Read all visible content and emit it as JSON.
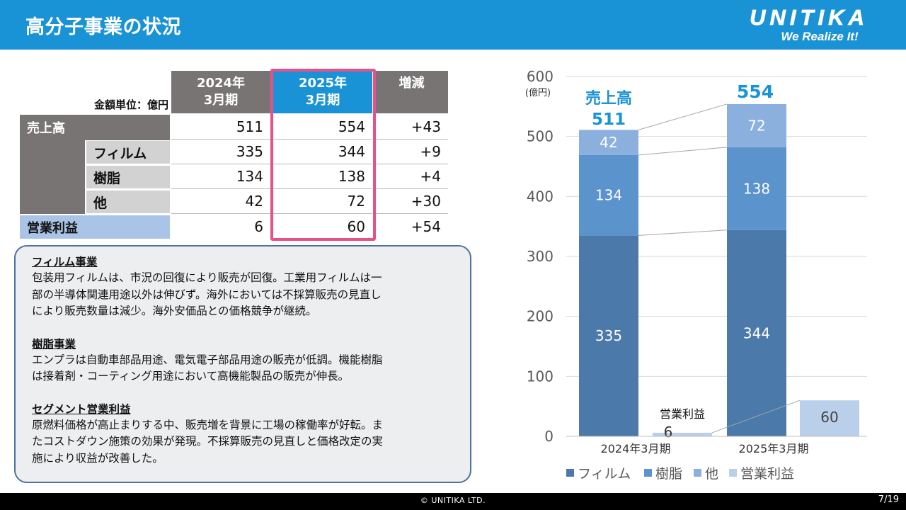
{
  "header": {
    "title": "高分子事業の状況",
    "logo_word": "UNITIKA",
    "logo_tagline": "We Realize It!"
  },
  "table": {
    "unit_label": "金額単位：億円",
    "columns": [
      {
        "line1": "2024年",
        "line2": "3月期"
      },
      {
        "line1": "2025年",
        "line2": "3月期"
      },
      {
        "line1": "増減",
        "line2": ""
      }
    ],
    "rows": [
      {
        "label": "売上高",
        "values": [
          "511",
          "554",
          "+43"
        ]
      },
      {
        "label": "フィルム",
        "values": [
          "335",
          "344",
          "+9"
        ]
      },
      {
        "label": "樹脂",
        "values": [
          "134",
          "138",
          "+4"
        ]
      },
      {
        "label": "他",
        "values": [
          "42",
          "72",
          "+30"
        ]
      },
      {
        "label": "営業利益",
        "values": [
          "6",
          "60",
          "+54"
        ]
      }
    ]
  },
  "commentary": [
    {
      "heading": "フィルム事業",
      "lines": [
        "包装用フィルムは、市況の回復により販売が回復。工業用フィルムは一",
        "部の半導体関連用途以外は伸びず。海外においては不採算販売の見直し",
        "により販売数量は減少。海外安価品との価格競争が継続。"
      ]
    },
    {
      "heading": "樹脂事業",
      "lines": [
        "エンプラは自動車部品用途、電気電子部品用途の販売が低調。機能樹脂",
        "は接着剤・コーティング用途において高機能製品の販売が伸長。"
      ]
    },
    {
      "heading": "セグメント営業利益",
      "lines": [
        "原燃料価格が高止まりする中、販売増を背景に工場の稼働率が好転。ま",
        "たコストダウン施策の効果が発現。不採算販売の見直しと価格改定の実",
        "施により収益が改善した。"
      ]
    }
  ],
  "chart_data": {
    "type": "bar",
    "categories": [
      "2024年3月期",
      "2025年3月期"
    ],
    "series": [
      {
        "name": "フィルム",
        "values": [
          335,
          344
        ],
        "color": "#4a79aa"
      },
      {
        "name": "樹脂",
        "values": [
          134,
          138
        ],
        "color": "#5b93cd"
      },
      {
        "name": "他",
        "values": [
          42,
          72
        ],
        "color": "#8bb0dd"
      },
      {
        "name": "営業利益",
        "values": [
          6,
          60
        ],
        "color": "#b9cfea"
      }
    ],
    "stacked_series": [
      "フィルム",
      "樹脂",
      "他"
    ],
    "side_series": "営業利益",
    "ylim": [
      0,
      600
    ],
    "yticks": [
      0,
      100,
      200,
      300,
      400,
      500,
      600
    ],
    "yunit": "(億円)",
    "total_label": "売上高",
    "totals": [
      511,
      554
    ],
    "op_label": "営業利益",
    "legend_position": "bottom",
    "grid": true
  },
  "footer": {
    "copyright": "© UNITIKA LTD.",
    "page": "7/19"
  }
}
